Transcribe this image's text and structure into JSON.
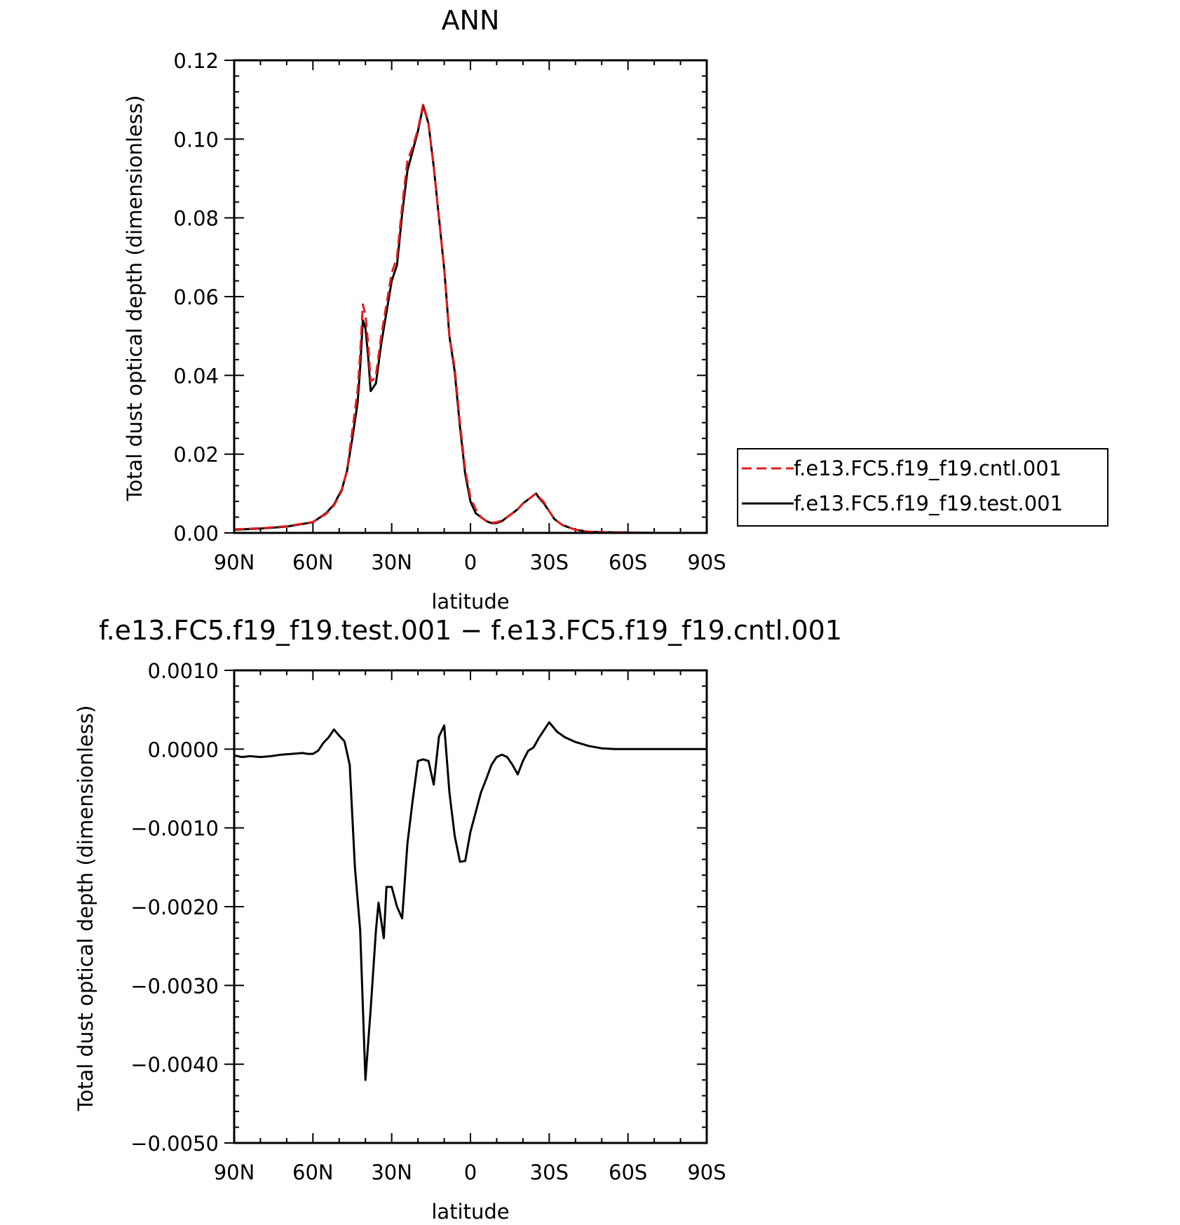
{
  "chart_data": [
    {
      "type": "line",
      "title": "ANN",
      "xlabel": "latitude",
      "ylabel": "Total dust optical depth (dimensionless)",
      "xlim": [
        90,
        -90
      ],
      "ylim": [
        0,
        0.12
      ],
      "xticks": [
        90,
        60,
        30,
        0,
        -30,
        -60,
        -90
      ],
      "xtick_labels": [
        "90N",
        "60N",
        "30N",
        "0",
        "30S",
        "60S",
        "90S"
      ],
      "yticks": [
        0,
        0.02,
        0.04,
        0.06,
        0.08,
        0.1,
        0.12
      ],
      "ytick_labels": [
        "0.00",
        "0.02",
        "0.04",
        "0.06",
        "0.08",
        "0.10",
        "0.12"
      ],
      "legend_position": "right",
      "series": [
        {
          "name": "f.e13.FC5.f19_f19.cntl.001",
          "color": "#e41a1c",
          "dash": true,
          "x": [
            90,
            80,
            70,
            60,
            55,
            52,
            49,
            47,
            45,
            43,
            42,
            41,
            40,
            39,
            38,
            37,
            36,
            34,
            32,
            30,
            28,
            26,
            24,
            22,
            20,
            18,
            16,
            14,
            12,
            10,
            8,
            6,
            4,
            2,
            0,
            -2,
            -4,
            -6,
            -8,
            -10,
            -12,
            -14,
            -16,
            -18,
            -20,
            -22,
            -24,
            -25,
            -26,
            -28,
            -30,
            -32,
            -35,
            -40,
            -45,
            -50,
            -60,
            -70,
            -80,
            -90
          ],
          "y": [
            0.0009,
            0.0012,
            0.0017,
            0.0028,
            0.0048,
            0.007,
            0.0107,
            0.016,
            0.026,
            0.036,
            0.0455,
            0.058,
            0.0555,
            0.048,
            0.0385,
            0.039,
            0.04,
            0.05,
            0.058,
            0.066,
            0.07,
            0.083,
            0.0945,
            0.098,
            0.1025,
            0.109,
            0.104,
            0.093,
            0.08,
            0.067,
            0.05,
            0.042,
            0.028,
            0.016,
            0.009,
            0.006,
            0.004,
            0.003,
            0.0026,
            0.0027,
            0.0032,
            0.004,
            0.005,
            0.006,
            0.0075,
            0.0085,
            0.0095,
            0.01,
            0.0092,
            0.0078,
            0.0055,
            0.0035,
            0.002,
            0.0008,
            0.0003,
            0.0002,
            0.0001,
            0.0,
            0.0,
            0.0
          ]
        },
        {
          "name": "f.e13.FC5.f19_f19.test.001",
          "color": "#000000",
          "dash": false,
          "x": [
            90,
            80,
            70,
            60,
            55,
            52,
            49,
            47,
            45,
            43,
            42,
            41,
            40,
            39,
            38,
            37,
            36,
            34,
            32,
            30,
            28,
            26,
            24,
            22,
            20,
            18,
            16,
            14,
            12,
            10,
            8,
            6,
            4,
            2,
            0,
            -2,
            -4,
            -6,
            -8,
            -10,
            -12,
            -14,
            -16,
            -18,
            -20,
            -22,
            -24,
            -25,
            -26,
            -28,
            -30,
            -32,
            -35,
            -40,
            -45,
            -50,
            -60,
            -70,
            -80,
            -90
          ],
          "y": [
            0.0008,
            0.0011,
            0.0016,
            0.0027,
            0.005,
            0.0072,
            0.011,
            0.0158,
            0.024,
            0.033,
            0.042,
            0.054,
            0.052,
            0.045,
            0.036,
            0.037,
            0.038,
            0.048,
            0.056,
            0.064,
            0.068,
            0.081,
            0.092,
            0.097,
            0.102,
            0.1085,
            0.104,
            0.093,
            0.08,
            0.067,
            0.05,
            0.041,
            0.027,
            0.015,
            0.008,
            0.005,
            0.004,
            0.003,
            0.0025,
            0.0025,
            0.003,
            0.004,
            0.005,
            0.006,
            0.0075,
            0.0085,
            0.0095,
            0.01,
            0.009,
            0.0075,
            0.0055,
            0.0035,
            0.002,
            0.0008,
            0.0003,
            0.0002,
            0.0001,
            0.0,
            0.0,
            0.0
          ]
        }
      ]
    },
    {
      "type": "line",
      "title": "f.e13.FC5.f19_f19.test.001 − f.e13.FC5.f19_f19.cntl.001",
      "xlabel": "latitude",
      "ylabel": "Total dust optical depth (dimensionless)",
      "xlim": [
        90,
        -90
      ],
      "ylim": [
        -0.005,
        0.001
      ],
      "xticks": [
        90,
        60,
        30,
        0,
        -30,
        -60,
        -90
      ],
      "xtick_labels": [
        "90N",
        "60N",
        "30N",
        "0",
        "30S",
        "60S",
        "90S"
      ],
      "yticks": [
        0.001,
        0,
        -0.001,
        -0.002,
        -0.003,
        -0.004,
        -0.005
      ],
      "ytick_labels": [
        "0.0010",
        "0.0000",
        "−0.0010",
        "−0.0020",
        "−0.0030",
        "−0.0040",
        "−0.0050"
      ],
      "series": [
        {
          "color": "#000000",
          "x": [
            90,
            87,
            84,
            80,
            76,
            72,
            68,
            64,
            62,
            60,
            58,
            56,
            54,
            52,
            50,
            48,
            46,
            44,
            42,
            40,
            38,
            36,
            35,
            33,
            32,
            30,
            28,
            26,
            24,
            22,
            20,
            18,
            16,
            14,
            12,
            10,
            8,
            6,
            4,
            2,
            0,
            -2,
            -4,
            -6,
            -8,
            -10,
            -12,
            -14,
            -16,
            -18,
            -20,
            -22,
            -24,
            -26,
            -28,
            -30,
            -33,
            -36,
            -40,
            -45,
            -50,
            -55,
            -60,
            -70,
            -80,
            -90
          ],
          "y": [
            -8e-05,
            -0.0001,
            -9e-05,
            -0.0001,
            -9e-05,
            -7e-05,
            -6e-05,
            -5e-05,
            -6e-05,
            -6e-05,
            -2e-05,
            8e-05,
            0.00015,
            0.00025,
            0.00017,
            0.0001,
            -0.0002,
            -0.0015,
            -0.0023,
            -0.0042,
            -0.0033,
            -0.0023,
            -0.00195,
            -0.0024,
            -0.00175,
            -0.00175,
            -0.002,
            -0.00215,
            -0.0012,
            -0.00065,
            -0.00015,
            -0.00013,
            -0.00015,
            -0.00045,
            0.00016,
            0.0003,
            -0.00055,
            -0.0011,
            -0.00143,
            -0.00142,
            -0.00105,
            -0.0008,
            -0.00055,
            -0.00038,
            -0.0002,
            -0.0001,
            -7e-05,
            -0.0001,
            -0.0002,
            -0.00032,
            -0.00015,
            -2e-05,
            2e-05,
            0.00014,
            0.00024,
            0.00034,
            0.00022,
            0.00015,
            9e-05,
            4e-05,
            1e-05,
            0.0,
            0.0,
            0.0,
            0.0,
            0.0
          ]
        }
      ]
    }
  ]
}
